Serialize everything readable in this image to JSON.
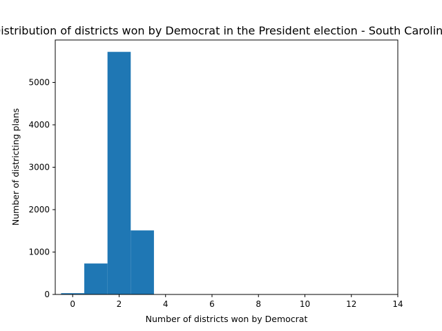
{
  "chart_data": {
    "type": "bar",
    "title": "Distribution of districts won by Democrat in the President election - South Carolina",
    "xlabel": "Number of districts won by Democrat",
    "ylabel": "Number of districting plans",
    "bins": [
      {
        "x": 0,
        "count": 30
      },
      {
        "x": 1,
        "count": 730
      },
      {
        "x": 2,
        "count": 5720
      },
      {
        "x": 3,
        "count": 1510
      }
    ],
    "bin_width": 1,
    "xlim": [
      -0.75,
      14.0
    ],
    "ylim": [
      0,
      6000
    ],
    "xticks": [
      0,
      2,
      4,
      6,
      8,
      10,
      12,
      14
    ],
    "yticks": [
      0,
      1000,
      2000,
      3000,
      4000,
      5000
    ],
    "bar_color": "#1f77b4",
    "grid": false,
    "legend": "none"
  }
}
